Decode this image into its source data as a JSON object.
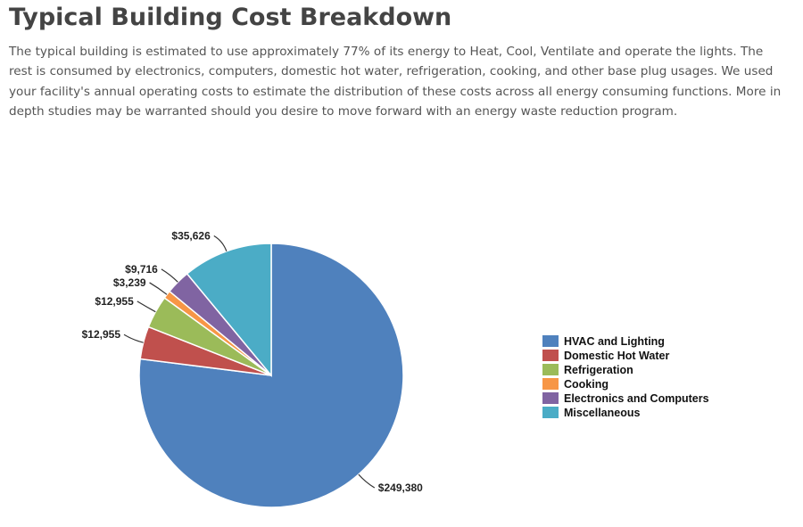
{
  "page": {
    "title": "Typical Building Cost Breakdown",
    "description": "The typical building is estimated to use approximately 77% of its energy to Heat, Cool, Ventilate and operate the lights. The rest is consumed by electronics, computers, domestic hot water, refrigeration, cooking, and other base plug usages. We used your facility's annual operating costs to estimate the distribution of these costs across all energy consuming functions. More in depth studies may be warranted should you desire to move forward with an energy waste reduction program."
  },
  "chart_data": {
    "type": "pie",
    "title": "",
    "start": "12 o'clock, clockwise",
    "legend_position": "right",
    "slices": [
      {
        "label": "HVAC and Lighting",
        "value": 249380,
        "display": "$249,380",
        "color": "#4f81bd"
      },
      {
        "label": "Domestic Hot Water",
        "value": 12955,
        "display": "$12,955",
        "color": "#c0504d"
      },
      {
        "label": "Refrigeration",
        "value": 12955,
        "display": "$12,955",
        "color": "#9bbb59"
      },
      {
        "label": "Cooking",
        "value": 3239,
        "display": "$3,239",
        "color": "#f79646"
      },
      {
        "label": "Electronics and Computers",
        "value": 9716,
        "display": "$9,716",
        "color": "#8064a2"
      },
      {
        "label": "Miscellaneous",
        "value": 35626,
        "display": "$35,626",
        "color": "#4bacc6"
      }
    ]
  }
}
